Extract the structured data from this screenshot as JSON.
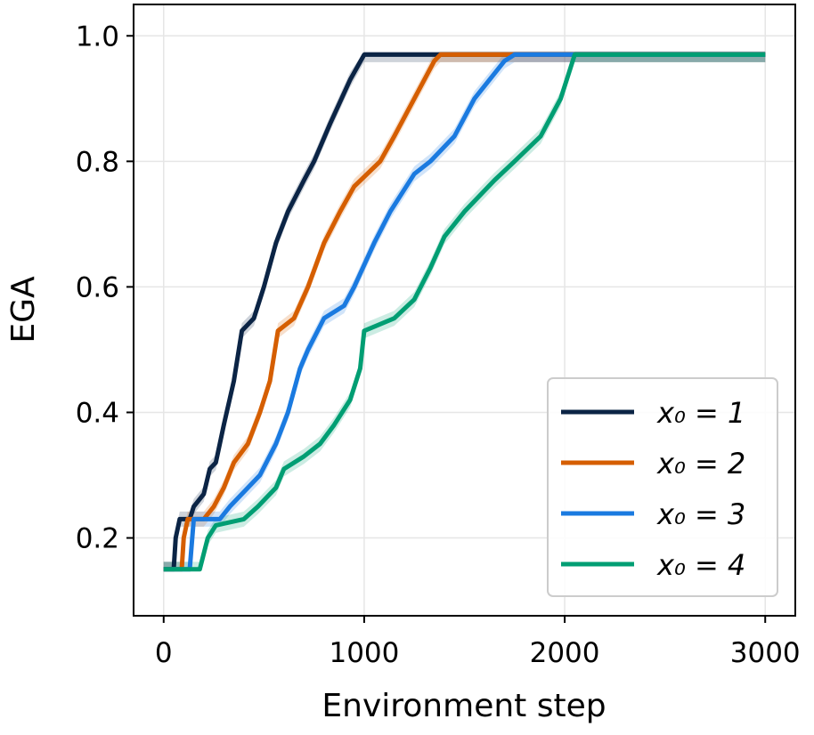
{
  "chart_data": {
    "type": "line",
    "title": "",
    "xlabel": "Environment step",
    "ylabel": "EGA",
    "xlim": [
      -150,
      3150
    ],
    "ylim": [
      0.076,
      1.05
    ],
    "xticks": [
      0,
      1000,
      2000,
      3000
    ],
    "xtick_labels": [
      "0",
      "1000",
      "2000",
      "3000"
    ],
    "yticks": [
      0.2,
      0.4,
      0.6,
      0.8,
      1.0
    ],
    "ytick_labels": [
      "0.2",
      "0.4",
      "0.6",
      "0.8",
      "1.0"
    ],
    "grid": true,
    "legend_position": "lower-right",
    "series": [
      {
        "name": "x₀ = 1",
        "color": "#0b2445",
        "x": [
          0,
          50,
          60,
          80,
          130,
          150,
          200,
          230,
          260,
          300,
          350,
          390,
          450,
          500,
          560,
          620,
          700,
          750,
          830,
          930,
          1000,
          3000
        ],
        "y": [
          0.15,
          0.15,
          0.2,
          0.23,
          0.23,
          0.25,
          0.27,
          0.31,
          0.32,
          0.38,
          0.45,
          0.53,
          0.55,
          0.6,
          0.67,
          0.72,
          0.77,
          0.8,
          0.86,
          0.93,
          0.97,
          0.97
        ]
      },
      {
        "name": "x₀ = 2",
        "color": "#d55e00",
        "x": [
          0,
          90,
          100,
          120,
          200,
          250,
          300,
          350,
          420,
          480,
          530,
          570,
          650,
          720,
          800,
          880,
          950,
          1080,
          1150,
          1250,
          1350,
          1380,
          3000
        ],
        "y": [
          0.15,
          0.15,
          0.2,
          0.23,
          0.23,
          0.25,
          0.28,
          0.32,
          0.35,
          0.4,
          0.45,
          0.53,
          0.55,
          0.6,
          0.67,
          0.72,
          0.76,
          0.8,
          0.84,
          0.9,
          0.96,
          0.97,
          0.97
        ]
      },
      {
        "name": "x₀ = 3",
        "color": "#1a7ae0",
        "x": [
          0,
          130,
          150,
          280,
          330,
          420,
          480,
          560,
          620,
          680,
          720,
          800,
          900,
          950,
          1050,
          1130,
          1250,
          1330,
          1450,
          1550,
          1700,
          1750,
          3000
        ],
        "y": [
          0.15,
          0.15,
          0.23,
          0.23,
          0.25,
          0.28,
          0.3,
          0.35,
          0.4,
          0.47,
          0.5,
          0.55,
          0.57,
          0.6,
          0.67,
          0.72,
          0.78,
          0.8,
          0.84,
          0.9,
          0.96,
          0.97,
          0.97
        ]
      },
      {
        "name": "x₀ = 4",
        "color": "#009e73",
        "x": [
          0,
          180,
          220,
          260,
          400,
          470,
          560,
          600,
          700,
          780,
          850,
          930,
          980,
          1000,
          1150,
          1250,
          1330,
          1400,
          1500,
          1650,
          1750,
          1880,
          1980,
          2050,
          3000
        ],
        "y": [
          0.15,
          0.15,
          0.2,
          0.22,
          0.23,
          0.25,
          0.28,
          0.31,
          0.33,
          0.35,
          0.38,
          0.42,
          0.47,
          0.53,
          0.55,
          0.58,
          0.63,
          0.68,
          0.72,
          0.77,
          0.8,
          0.84,
          0.9,
          0.97,
          0.97
        ]
      }
    ]
  }
}
